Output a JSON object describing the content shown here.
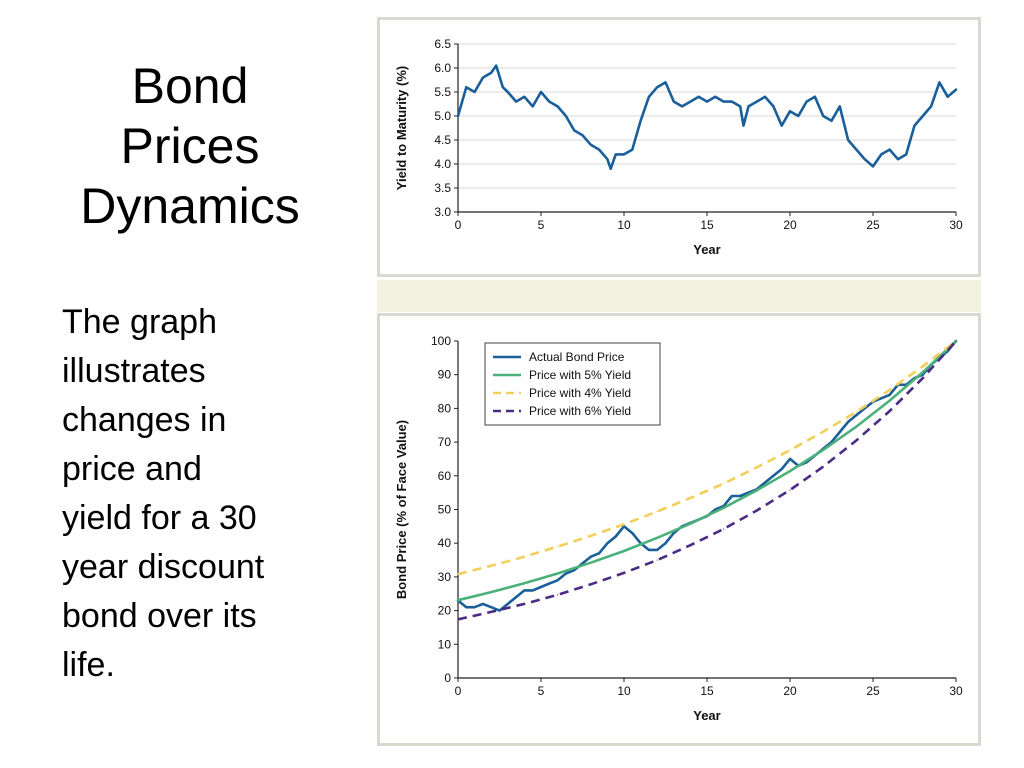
{
  "slide": {
    "title": "Bond\nPrices\nDynamics",
    "body": "The graph\nillustrates\nchanges in\nprice and\nyield for a 30\nyear discount\nbond over its\nlife."
  },
  "colors": {
    "actual": "#1a5e9a",
    "yield5": "#4bb07a",
    "yield4": "#f1cf5a",
    "yield6": "#4b2c83",
    "grid": "#d8d8d8",
    "panel_border": "#d9d9d1",
    "gap": "#f3f2e0"
  },
  "chart_data": [
    {
      "type": "line",
      "title": "",
      "xlabel": "Year",
      "ylabel": "Yield to Maturity (%)",
      "xlim": [
        0,
        30
      ],
      "ylim": [
        3.0,
        6.5
      ],
      "xticks": [
        0,
        5,
        10,
        15,
        20,
        25,
        30
      ],
      "xtick_labels": [
        "0",
        "5",
        "10",
        "15",
        "20",
        "25",
        "30"
      ],
      "yticks": [
        3.0,
        3.5,
        4.0,
        4.5,
        5.0,
        5.5,
        6.0,
        6.5
      ],
      "ytick_labels": [
        "3.0",
        "3.5",
        "4.0",
        "4.5",
        "5.0",
        "5.5",
        "6.0",
        "6.5"
      ],
      "grid": "horizontal",
      "series": [
        {
          "name": "",
          "color_key": "actual",
          "x": [
            0,
            0.5,
            1,
            1.5,
            2,
            2.3,
            2.7,
            3,
            3.5,
            4,
            4.5,
            5,
            5.5,
            6,
            6.5,
            7,
            7.5,
            8,
            8.5,
            9,
            9.2,
            9.5,
            10,
            10.5,
            11,
            11.5,
            12,
            12.5,
            13,
            13.5,
            14,
            14.5,
            15,
            15.5,
            16,
            16.5,
            17,
            17.2,
            17.5,
            18,
            18.5,
            19,
            19.5,
            20,
            20.5,
            21,
            21.5,
            22,
            22.5,
            23,
            23.5,
            24,
            24.5,
            25,
            25.5,
            26,
            26.5,
            27,
            27.5,
            28,
            28.5,
            29,
            29.5,
            30
          ],
          "y": [
            5.0,
            5.6,
            5.5,
            5.8,
            5.9,
            6.05,
            5.6,
            5.5,
            5.3,
            5.4,
            5.2,
            5.5,
            5.3,
            5.2,
            5.0,
            4.7,
            4.6,
            4.4,
            4.3,
            4.1,
            3.9,
            4.2,
            4.2,
            4.3,
            4.9,
            5.4,
            5.6,
            5.7,
            5.3,
            5.2,
            5.3,
            5.4,
            5.3,
            5.4,
            5.3,
            5.3,
            5.2,
            4.8,
            5.2,
            5.3,
            5.4,
            5.2,
            4.8,
            5.1,
            5.0,
            5.3,
            5.4,
            5.0,
            4.9,
            5.2,
            4.5,
            4.3,
            4.1,
            3.95,
            4.2,
            4.3,
            4.1,
            4.2,
            4.8,
            5.0,
            5.2,
            5.7,
            5.4,
            5.55
          ]
        }
      ]
    },
    {
      "type": "line",
      "title": "",
      "xlabel": "Year",
      "ylabel": "Bond Price (% of Face Value)",
      "xlim": [
        0,
        30
      ],
      "ylim": [
        0,
        100
      ],
      "xticks": [
        0,
        5,
        10,
        15,
        20,
        25,
        30
      ],
      "xtick_labels": [
        "0",
        "5",
        "10",
        "15",
        "20",
        "25",
        "30"
      ],
      "yticks": [
        0,
        10,
        20,
        30,
        40,
        50,
        60,
        70,
        80,
        90,
        100
      ],
      "ytick_labels": [
        "0",
        "10",
        "20",
        "30",
        "40",
        "50",
        "60",
        "70",
        "80",
        "90",
        "100"
      ],
      "grid": "none",
      "legend_position": "top-left",
      "series": [
        {
          "name": "Actual Bond Price",
          "color_key": "actual",
          "style": "solid",
          "x": [
            0,
            0.5,
            1,
            1.5,
            2,
            2.5,
            3,
            3.5,
            4,
            4.5,
            5,
            5.5,
            6,
            6.5,
            7,
            7.5,
            8,
            8.5,
            9,
            9.5,
            10,
            10.5,
            11,
            11.5,
            12,
            12.5,
            13,
            13.5,
            14,
            14.5,
            15,
            15.5,
            16,
            16.5,
            17,
            17.5,
            18,
            18.5,
            19,
            19.5,
            20,
            20.5,
            21,
            21.5,
            22,
            22.5,
            23,
            23.5,
            24,
            24.5,
            25,
            25.5,
            26,
            26.5,
            27,
            27.5,
            28,
            28.5,
            29,
            29.5,
            30
          ],
          "y": [
            23,
            21,
            21,
            22,
            21,
            20,
            22,
            24,
            26,
            26,
            27,
            28,
            29,
            31,
            32,
            34,
            36,
            37,
            40,
            42,
            45,
            43,
            40,
            38,
            38,
            40,
            43,
            45,
            46,
            47,
            48,
            50,
            51,
            54,
            54,
            55,
            56,
            58,
            60,
            62,
            65,
            63,
            64,
            66,
            68,
            70,
            73,
            76,
            78,
            80,
            82,
            83,
            84,
            87,
            87,
            89,
            90,
            93,
            95,
            97,
            100
          ]
        },
        {
          "name": "Price with 5% Yield",
          "color_key": "yield5",
          "style": "solid",
          "x": [
            0,
            2,
            4,
            6,
            8,
            10,
            12,
            14,
            16,
            18,
            20,
            22,
            24,
            26,
            28,
            30
          ],
          "y": [
            23.1,
            25.5,
            28.1,
            31.0,
            34.2,
            37.7,
            41.6,
            45.8,
            50.5,
            55.7,
            61.4,
            67.7,
            74.6,
            82.3,
            90.7,
            100
          ]
        },
        {
          "name": "Price with 4% Yield",
          "color_key": "yield4",
          "style": "dashed",
          "x": [
            0,
            2,
            4,
            6,
            8,
            10,
            12,
            14,
            16,
            18,
            20,
            22,
            24,
            26,
            28,
            30
          ],
          "y": [
            30.8,
            33.3,
            36.0,
            39.0,
            42.2,
            45.6,
            49.4,
            53.4,
            57.7,
            62.5,
            67.6,
            73.1,
            79.0,
            85.5,
            92.5,
            100
          ]
        },
        {
          "name": "Price with 6% Yield",
          "color_key": "yield6",
          "style": "dashed",
          "x": [
            0,
            2,
            4,
            6,
            8,
            10,
            12,
            14,
            16,
            18,
            20,
            22,
            24,
            26,
            28,
            30
          ],
          "y": [
            17.4,
            19.6,
            22.0,
            24.7,
            27.8,
            31.2,
            35.0,
            39.4,
            44.2,
            49.7,
            55.8,
            62.7,
            70.5,
            79.2,
            89.0,
            100
          ]
        }
      ]
    }
  ]
}
